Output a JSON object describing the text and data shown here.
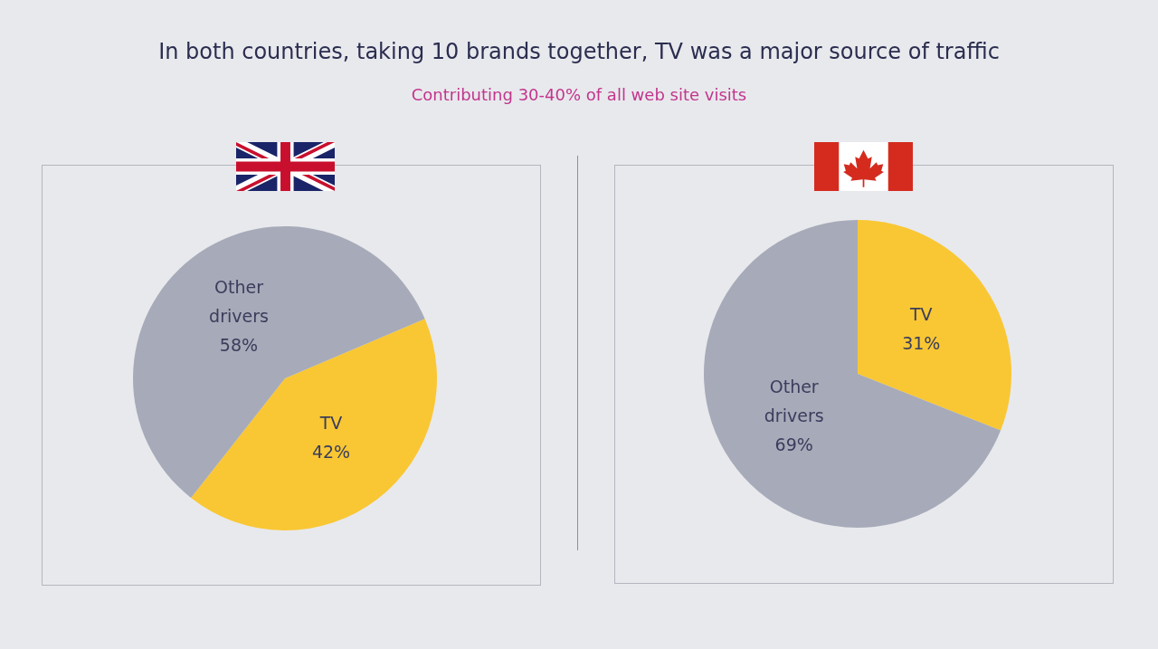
{
  "chart_data": [
    {
      "type": "pie",
      "title": "In both countries, taking 10 brands together, TV was a major source of traffic",
      "subtitle": "Contributing 30-40% of all web site visits",
      "categories": [
        "TV",
        "Other drivers"
      ],
      "values": [
        42,
        58
      ],
      "colors": [
        "#f9c733",
        "#a7aab8"
      ],
      "value_labels": [
        "42%",
        "58%"
      ]
    },
    {
      "type": "pie",
      "categories": [
        "TV",
        "Other drivers"
      ],
      "values": [
        31,
        69
      ],
      "colors": [
        "#f9c733",
        "#a7aab8"
      ],
      "value_labels": [
        "31%",
        "69%"
      ]
    }
  ]
}
